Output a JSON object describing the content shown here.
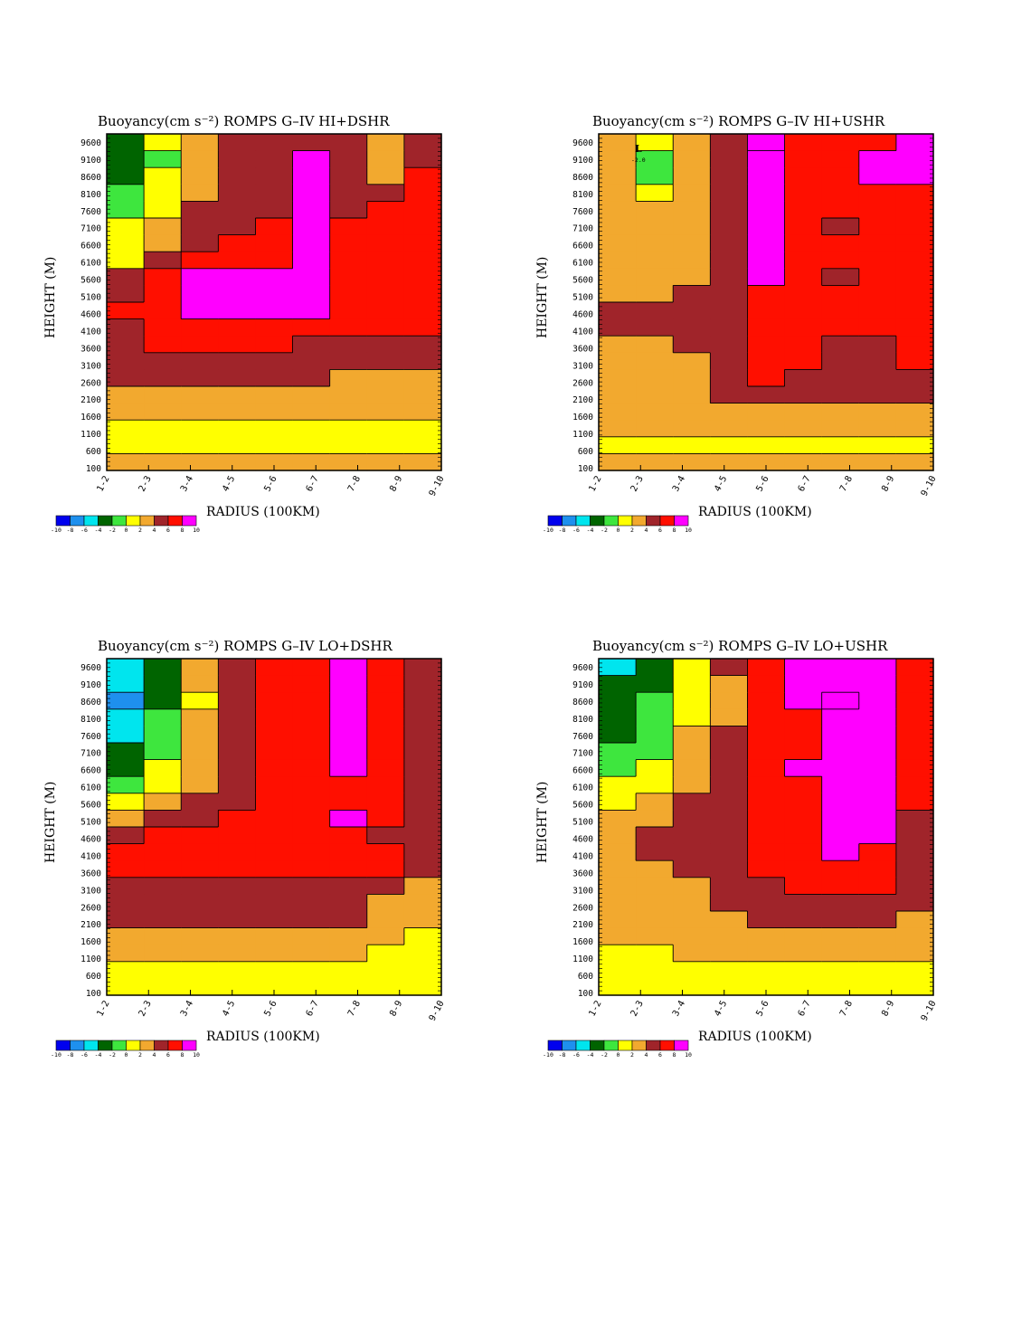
{
  "chart_data": [
    {
      "type": "heatmap",
      "title": "Buoyancy(cm s⁻²)    ROMPS G–IV HI+DSHR",
      "xlabel": "RADIUS (100KM)",
      "ylabel": "HEIGHT (M)",
      "x_categories": [
        "1-2",
        "2-3",
        "3-4",
        "4-5",
        "5-6",
        "6-7",
        "7-8",
        "8-9",
        "9-10"
      ],
      "y_ticks": [
        100,
        600,
        1100,
        1600,
        2100,
        2600,
        3100,
        3600,
        4100,
        4600,
        5100,
        5600,
        6100,
        6600,
        7100,
        7600,
        8100,
        8600,
        9100,
        9600
      ],
      "values": [
        [
          -4,
          0,
          2,
          4,
          4,
          4,
          4,
          2,
          4
        ],
        [
          -4,
          -2,
          2,
          4,
          4,
          8,
          4,
          2,
          4
        ],
        [
          -4,
          0,
          2,
          4,
          4,
          8,
          4,
          2,
          6
        ],
        [
          -2,
          0,
          2,
          4,
          4,
          8,
          4,
          4,
          6
        ],
        [
          -2,
          0,
          4,
          4,
          4,
          8,
          4,
          6,
          6
        ],
        [
          0,
          2,
          4,
          4,
          6,
          8,
          6,
          6,
          6
        ],
        [
          0,
          2,
          4,
          6,
          6,
          8,
          6,
          6,
          6
        ],
        [
          0,
          4,
          6,
          6,
          6,
          8,
          6,
          6,
          6
        ],
        [
          4,
          6,
          8,
          8,
          8,
          8,
          6,
          6,
          6
        ],
        [
          4,
          6,
          8,
          8,
          8,
          8,
          6,
          6,
          6
        ],
        [
          6,
          6,
          8,
          8,
          8,
          8,
          6,
          6,
          6
        ],
        [
          4,
          6,
          6,
          6,
          6,
          6,
          6,
          6,
          6
        ],
        [
          4,
          6,
          6,
          6,
          6,
          4,
          4,
          4,
          4
        ],
        [
          4,
          4,
          4,
          4,
          4,
          4,
          4,
          4,
          4
        ],
        [
          4,
          4,
          4,
          4,
          4,
          4,
          2,
          2,
          2
        ],
        [
          2,
          2,
          2,
          2,
          2,
          2,
          2,
          2,
          2
        ],
        [
          2,
          2,
          2,
          2,
          2,
          2,
          2,
          2,
          2
        ],
        [
          0,
          0,
          0,
          0,
          0,
          0,
          0,
          0,
          0
        ],
        [
          0,
          0,
          0,
          0,
          0,
          0,
          0,
          0,
          0
        ],
        [
          2,
          2,
          2,
          2,
          2,
          2,
          2,
          2,
          2
        ]
      ],
      "annotation": null,
      "colorbar": {
        "ticks": [
          "-10",
          "-8",
          "-6",
          "-4",
          "-2",
          "0",
          "2",
          "4",
          "6",
          "8",
          "10"
        ]
      }
    },
    {
      "type": "heatmap",
      "title": "Buoyancy(cm s⁻²)    ROMPS G–IV HI+USHR",
      "xlabel": "RADIUS (100KM)",
      "ylabel": "HEIGHT (M)",
      "x_categories": [
        "1-2",
        "2-3",
        "3-4",
        "4-5",
        "5-6",
        "6-7",
        "7-8",
        "8-9",
        "9-10"
      ],
      "y_ticks": [
        100,
        600,
        1100,
        1600,
        2100,
        2600,
        3100,
        3600,
        4100,
        4600,
        5100,
        5600,
        6100,
        6600,
        7100,
        7600,
        8100,
        8600,
        9100,
        9600
      ],
      "values": [
        [
          2,
          0,
          2,
          4,
          10,
          6,
          6,
          6,
          8
        ],
        [
          2,
          -2,
          2,
          4,
          8,
          6,
          6,
          8,
          8
        ],
        [
          2,
          -2,
          2,
          4,
          8,
          6,
          6,
          8,
          8
        ],
        [
          2,
          0,
          2,
          4,
          8,
          6,
          6,
          6,
          6
        ],
        [
          2,
          2,
          2,
          4,
          8,
          6,
          6,
          6,
          6
        ],
        [
          2,
          2,
          2,
          4,
          8,
          6,
          4,
          6,
          6
        ],
        [
          2,
          2,
          2,
          4,
          8,
          6,
          6,
          6,
          6
        ],
        [
          2,
          2,
          2,
          4,
          8,
          6,
          6,
          6,
          6
        ],
        [
          2,
          2,
          2,
          4,
          8,
          6,
          4,
          6,
          6
        ],
        [
          2,
          2,
          4,
          4,
          6,
          6,
          6,
          6,
          6
        ],
        [
          4,
          4,
          4,
          4,
          6,
          6,
          6,
          6,
          6
        ],
        [
          4,
          4,
          4,
          4,
          6,
          6,
          6,
          6,
          6
        ],
        [
          2,
          2,
          4,
          4,
          6,
          6,
          4,
          4,
          6
        ],
        [
          2,
          2,
          2,
          4,
          6,
          6,
          4,
          4,
          6
        ],
        [
          2,
          2,
          2,
          4,
          6,
          4,
          4,
          4,
          4
        ],
        [
          2,
          2,
          2,
          4,
          4,
          4,
          4,
          4,
          4
        ],
        [
          2,
          2,
          2,
          2,
          2,
          2,
          2,
          2,
          2
        ],
        [
          2,
          2,
          2,
          2,
          2,
          2,
          2,
          2,
          2
        ],
        [
          0,
          0,
          0,
          0,
          0,
          0,
          0,
          0,
          0
        ],
        [
          2,
          2,
          2,
          2,
          2,
          2,
          2,
          2,
          2
        ]
      ],
      "annotation": {
        "letter": "L",
        "value": "-2.0"
      },
      "colorbar": {
        "ticks": [
          "-10",
          "-8",
          "-6",
          "-4",
          "-2",
          "0",
          "2",
          "4",
          "6",
          "8",
          "10"
        ]
      }
    },
    {
      "type": "heatmap",
      "title": "Buoyancy(cm s⁻²)    ROMPS G–IV LO+DSHR",
      "xlabel": "RADIUS (100KM)",
      "ylabel": "HEIGHT (M)",
      "x_categories": [
        "1-2",
        "2-3",
        "3-4",
        "4-5",
        "5-6",
        "6-7",
        "7-8",
        "8-9",
        "9-10"
      ],
      "y_ticks": [
        100,
        600,
        1100,
        1600,
        2100,
        2600,
        3100,
        3600,
        4100,
        4600,
        5100,
        5600,
        6100,
        6600,
        7100,
        7600,
        8100,
        8600,
        9100,
        9600
      ],
      "values": [
        [
          -6,
          -4,
          2,
          4,
          6,
          6,
          8,
          6,
          4
        ],
        [
          -6,
          -4,
          2,
          4,
          6,
          6,
          8,
          6,
          4
        ],
        [
          -8,
          -4,
          0,
          4,
          6,
          6,
          8,
          6,
          4
        ],
        [
          -6,
          -2,
          2,
          4,
          6,
          6,
          8,
          6,
          4
        ],
        [
          -6,
          -2,
          2,
          4,
          6,
          6,
          8,
          6,
          4
        ],
        [
          -4,
          -2,
          2,
          4,
          6,
          6,
          8,
          6,
          4
        ],
        [
          -4,
          0,
          2,
          4,
          6,
          6,
          8,
          6,
          4
        ],
        [
          -2,
          0,
          2,
          4,
          6,
          6,
          6,
          6,
          4
        ],
        [
          0,
          2,
          4,
          4,
          6,
          6,
          6,
          6,
          4
        ],
        [
          2,
          4,
          4,
          6,
          6,
          6,
          8,
          6,
          4
        ],
        [
          4,
          6,
          6,
          6,
          6,
          6,
          6,
          4,
          4
        ],
        [
          6,
          6,
          6,
          6,
          6,
          6,
          6,
          6,
          4
        ],
        [
          6,
          6,
          6,
          6,
          6,
          6,
          6,
          6,
          4
        ],
        [
          4,
          4,
          4,
          4,
          4,
          4,
          4,
          4,
          2
        ],
        [
          4,
          4,
          4,
          4,
          4,
          4,
          4,
          2,
          2
        ],
        [
          4,
          4,
          4,
          4,
          4,
          4,
          4,
          2,
          2
        ],
        [
          2,
          2,
          2,
          2,
          2,
          2,
          2,
          2,
          0
        ],
        [
          2,
          2,
          2,
          2,
          2,
          2,
          2,
          0,
          0
        ],
        [
          0,
          0,
          0,
          0,
          0,
          0,
          0,
          0,
          0
        ],
        [
          0,
          0,
          0,
          0,
          0,
          0,
          0,
          0,
          0
        ]
      ],
      "annotation": null,
      "colorbar": {
        "ticks": [
          "-10",
          "-8",
          "-6",
          "-4",
          "-2",
          "0",
          "2",
          "4",
          "6",
          "8",
          "10"
        ]
      }
    },
    {
      "type": "heatmap",
      "title": "Buoyancy(cm s⁻²)    ROMPS G–IV LO+USHR",
      "xlabel": "RADIUS (100KM)",
      "ylabel": "HEIGHT (M)",
      "x_categories": [
        "1-2",
        "2-3",
        "3-4",
        "4-5",
        "5-6",
        "6-7",
        "7-8",
        "8-9",
        "9-10"
      ],
      "y_ticks": [
        100,
        600,
        1100,
        1600,
        2100,
        2600,
        3100,
        3600,
        4100,
        4600,
        5100,
        5600,
        6100,
        6600,
        7100,
        7600,
        8100,
        8600,
        9100,
        9600
      ],
      "values": [
        [
          -6,
          -4,
          0,
          4,
          6,
          8,
          8,
          8,
          6
        ],
        [
          -4,
          -4,
          0,
          2,
          6,
          8,
          8,
          8,
          6
        ],
        [
          -4,
          -2,
          0,
          2,
          6,
          8,
          10,
          8,
          6
        ],
        [
          -4,
          -2,
          0,
          2,
          6,
          6,
          8,
          8,
          6
        ],
        [
          -4,
          -2,
          2,
          4,
          6,
          6,
          8,
          8,
          6
        ],
        [
          -2,
          -2,
          2,
          4,
          6,
          6,
          8,
          8,
          6
        ],
        [
          -2,
          0,
          2,
          4,
          6,
          8,
          8,
          8,
          6
        ],
        [
          0,
          0,
          2,
          4,
          6,
          6,
          8,
          8,
          6
        ],
        [
          0,
          2,
          4,
          4,
          6,
          6,
          8,
          8,
          6
        ],
        [
          2,
          2,
          4,
          4,
          6,
          6,
          8,
          8,
          4
        ],
        [
          2,
          4,
          4,
          4,
          6,
          6,
          8,
          8,
          4
        ],
        [
          2,
          4,
          4,
          4,
          6,
          6,
          8,
          6,
          4
        ],
        [
          2,
          2,
          4,
          4,
          6,
          6,
          6,
          6,
          4
        ],
        [
          2,
          2,
          2,
          4,
          4,
          6,
          6,
          6,
          4
        ],
        [
          2,
          2,
          2,
          4,
          4,
          4,
          4,
          4,
          4
        ],
        [
          2,
          2,
          2,
          2,
          4,
          4,
          4,
          4,
          2
        ],
        [
          2,
          2,
          2,
          2,
          2,
          2,
          2,
          2,
          2
        ],
        [
          0,
          0,
          2,
          2,
          2,
          2,
          2,
          2,
          2
        ],
        [
          0,
          0,
          0,
          0,
          0,
          0,
          0,
          0,
          0
        ],
        [
          0,
          0,
          0,
          0,
          0,
          0,
          0,
          0,
          0
        ]
      ],
      "annotation": null,
      "colorbar": {
        "ticks": [
          "-10",
          "-8",
          "-6",
          "-4",
          "-2",
          "0",
          "2",
          "4",
          "6",
          "8",
          "10"
        ]
      }
    }
  ],
  "colors": {
    "levels": [
      -10,
      -8,
      -6,
      -4,
      -2,
      0,
      2,
      4,
      6,
      8,
      10
    ],
    "fills": [
      "#0000ee",
      "#1e90ee",
      "#00e5ee",
      "#006400",
      "#3ee63e",
      "#ffff00",
      "#f2a92f",
      "#a0242a",
      "#ff0f00",
      "#ff00ff"
    ]
  }
}
